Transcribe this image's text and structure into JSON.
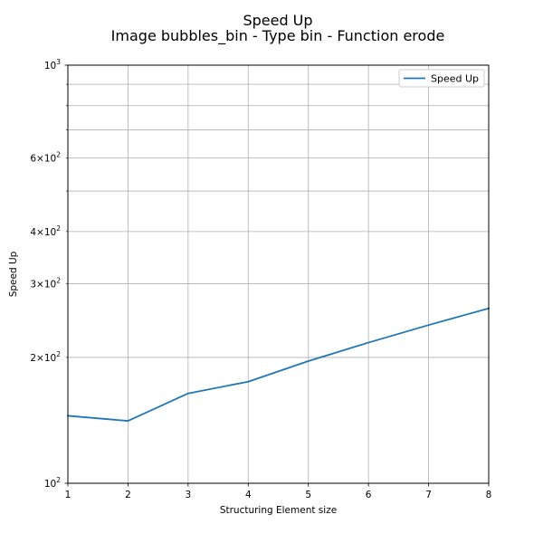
{
  "chart_data": {
    "type": "line",
    "title": "Speed Up",
    "subtitle": "Image bubbles_bin - Type bin - Function erode",
    "xlabel": "Structuring Element size",
    "ylabel": "Speed Up",
    "x": [
      1,
      2,
      3,
      4,
      5,
      6,
      7,
      8
    ],
    "series": [
      {
        "name": "Speed Up",
        "values": [
          145,
          141,
          164,
          175,
          196,
          217,
          239,
          262
        ]
      }
    ],
    "xlim": [
      1,
      8
    ],
    "ylim": [
      100,
      1000
    ],
    "yscale": "log",
    "grid": true,
    "legend_position": "top-right",
    "x_ticks": [
      "1",
      "2",
      "3",
      "4",
      "5",
      "6",
      "7",
      "8"
    ],
    "y_major_ticks": [
      {
        "value": 100,
        "base": "10",
        "exp": "2"
      },
      {
        "value": 1000,
        "base": "10",
        "exp": "3"
      }
    ],
    "y_minor_ticks": [
      {
        "value": 200,
        "mant": "2",
        "base": "10",
        "exp": "2"
      },
      {
        "value": 300,
        "mant": "3",
        "base": "10",
        "exp": "2"
      },
      {
        "value": 400,
        "mant": "4",
        "base": "10",
        "exp": "2"
      },
      {
        "value": 500,
        "mant": "",
        "base": "",
        "exp": ""
      },
      {
        "value": 600,
        "mant": "6",
        "base": "10",
        "exp": "2"
      },
      {
        "value": 700,
        "mant": "",
        "base": "",
        "exp": ""
      },
      {
        "value": 800,
        "mant": "",
        "base": "",
        "exp": ""
      },
      {
        "value": 900,
        "mant": "",
        "base": "",
        "exp": ""
      }
    ],
    "colors": {
      "line": "#1f77b4",
      "grid": "#b0b0b0",
      "axis": "#000000"
    }
  }
}
